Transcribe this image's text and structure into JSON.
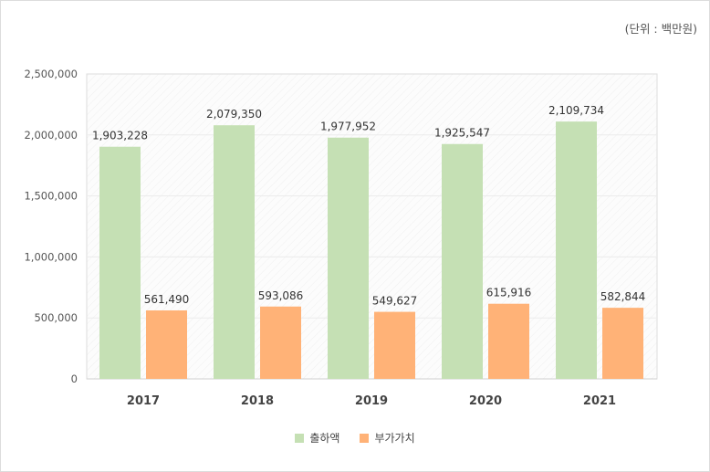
{
  "unit_label": "(단위 : 백만원)",
  "chart_data": {
    "type": "bar",
    "categories": [
      "2017",
      "2018",
      "2019",
      "2020",
      "2021"
    ],
    "series": [
      {
        "name": "출하액",
        "color": "#c5e0b4",
        "values": [
          1903228,
          2079350,
          1977952,
          1925547,
          2109734
        ],
        "labels": [
          "1,903,228",
          "2,079,350",
          "1,977,952",
          "1,925,547",
          "2,109,734"
        ]
      },
      {
        "name": "부가가치",
        "color": "#ffb277",
        "values": [
          561490,
          593086,
          549627,
          615916,
          582844
        ],
        "labels": [
          "561,490",
          "593,086",
          "549,627",
          "615,916",
          "582,844"
        ]
      }
    ],
    "yticks": [
      "0",
      "500,000",
      "1,000,000",
      "1,500,000",
      "2,000,000",
      "2,500,000"
    ],
    "ylim": [
      0,
      2500000
    ],
    "grid": true,
    "legend": "bottom-center"
  }
}
